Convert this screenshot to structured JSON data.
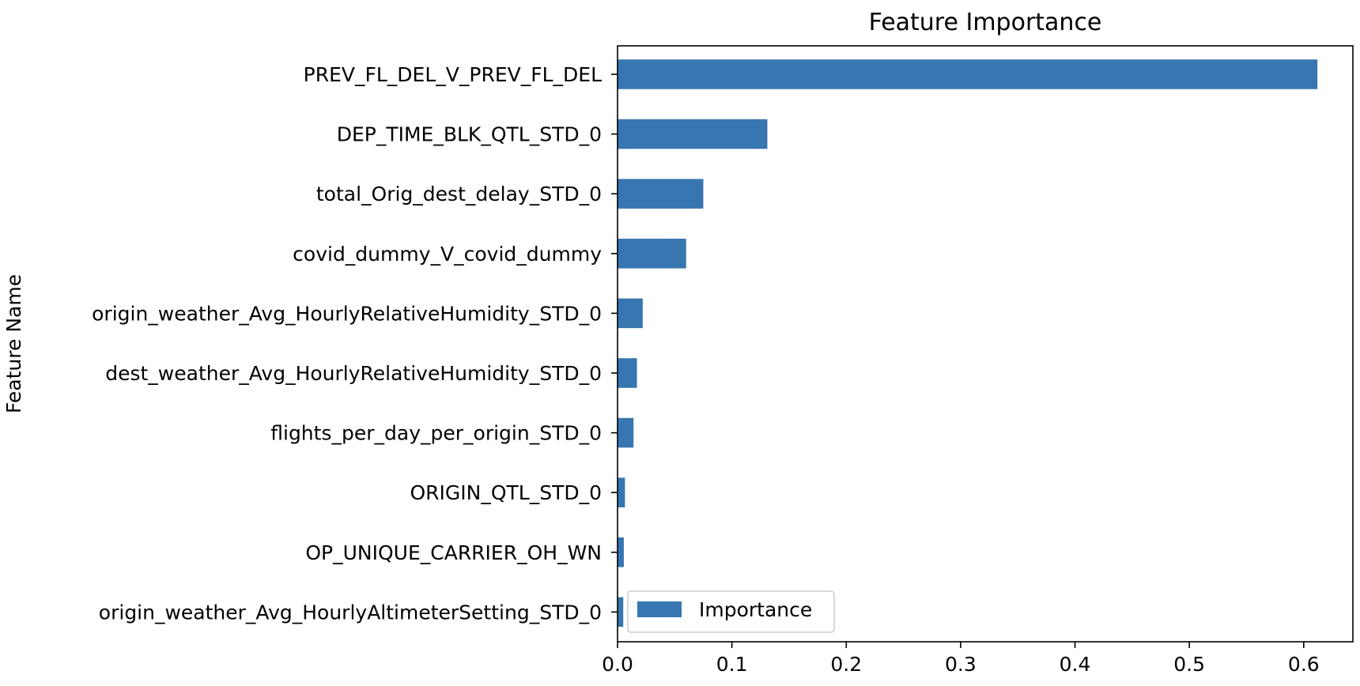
{
  "chart_data": {
    "type": "bar",
    "orientation": "horizontal",
    "title": "Feature Importance",
    "ylabel": "Feature Name",
    "xlabel": "",
    "categories": [
      "PREV_FL_DEL_V_PREV_FL_DEL",
      "DEP_TIME_BLK_QTL_STD_0",
      "total_Orig_dest_delay_STD_0",
      "covid_dummy_V_covid_dummy",
      "origin_weather_Avg_HourlyRelativeHumidity_STD_0",
      "dest_weather_Avg_HourlyRelativeHumidity_STD_0",
      "flights_per_day_per_origin_STD_0",
      "ORIGIN_QTL_STD_0",
      "OP_UNIQUE_CARRIER_OH_WN",
      "origin_weather_Avg_HourlyAltimeterSetting_STD_0"
    ],
    "series": [
      {
        "name": "Importance",
        "values": [
          0.612,
          0.131,
          0.075,
          0.06,
          0.022,
          0.017,
          0.014,
          0.0065,
          0.0055,
          0.005
        ]
      }
    ],
    "xlim": [
      0.0,
      0.643
    ],
    "xticks": [
      0.0,
      0.1,
      0.2,
      0.3,
      0.4,
      0.5,
      0.6
    ],
    "xtick_labels": [
      "0.0",
      "0.1",
      "0.2",
      "0.3",
      "0.4",
      "0.5",
      "0.6"
    ],
    "legend_position": "bottom-left",
    "grid": false,
    "bar_color": "#3776b0"
  }
}
